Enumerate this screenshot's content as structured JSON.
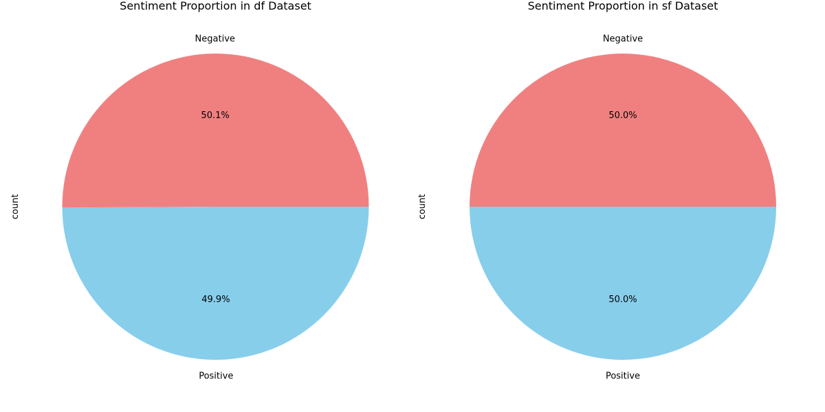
{
  "chart_data": [
    {
      "type": "pie",
      "title": "Sentiment Proportion in df Dataset",
      "ylabel": "count",
      "categories": [
        "Negative",
        "Positive"
      ],
      "values": [
        50.1,
        49.9
      ],
      "labels": [
        "50.1%",
        "49.9%"
      ],
      "colors": [
        "#f08080",
        "#87ceeb"
      ],
      "start_angle": 0
    },
    {
      "type": "pie",
      "title": "Sentiment Proportion in sf Dataset",
      "ylabel": "count",
      "categories": [
        "Negative",
        "Positive"
      ],
      "values": [
        50.0,
        50.0
      ],
      "labels": [
        "50.0%",
        "50.0%"
      ],
      "colors": [
        "#f08080",
        "#87ceeb"
      ],
      "start_angle": 0
    }
  ]
}
